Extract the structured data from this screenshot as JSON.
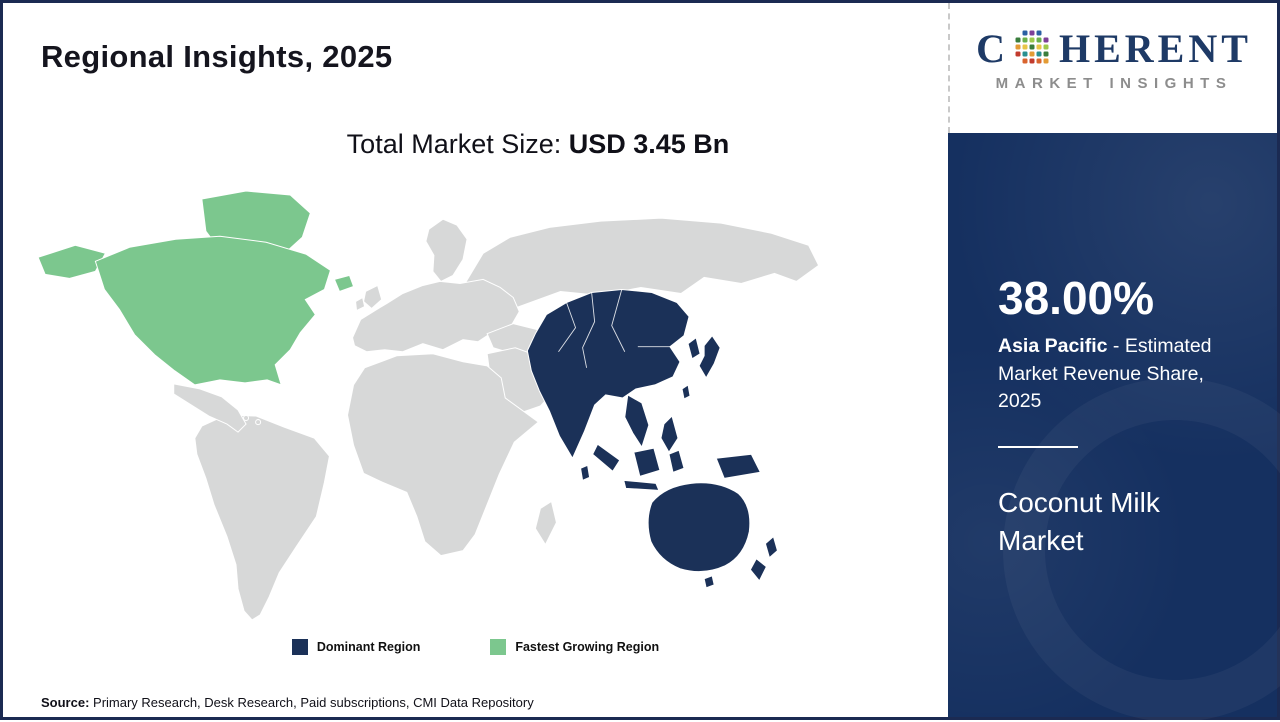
{
  "colors": {
    "frame": "#1b2a52",
    "dominant": "#1b3158",
    "fastest": "#7cc78e",
    "other": "#d7d8d8",
    "sidebar_bg": "#153060",
    "logo_navy": "#1e3a66",
    "logo_gray": "#8d8d8d",
    "text": "#15151e"
  },
  "header": {
    "title": "Regional Insights, 2025"
  },
  "market_size": {
    "label": "Total Market Size: ",
    "value": "USD 3.45 Bn"
  },
  "legend": {
    "items": [
      {
        "label": "Dominant Region",
        "key": "dominant"
      },
      {
        "label": "Fastest Growing Region",
        "key": "fastest"
      }
    ]
  },
  "sidebar": {
    "percentage": "38.00%",
    "region": "Asia Pacific",
    "description": " - Estimated Market Revenue Share, 2025",
    "market_name": "Coconut Milk Market"
  },
  "logo": {
    "word_start": "C",
    "word_end": "HERENT",
    "line2": "MARKET INSIGHTS",
    "dot_colors": [
      "#3a7d3c",
      "#e39b35",
      "#c23b2e",
      "#2b5fa3",
      "#6ab04c",
      "#e8c547",
      "#2a8f8f",
      "#d9642e",
      "#7d3f98",
      "#9dc94b"
    ]
  },
  "source": {
    "label": "Source:",
    "text": " Primary Research, Desk Research, Paid subscriptions, CMI Data Repository"
  },
  "chart_data": {
    "type": "heatmap",
    "subtype": "choropleth_world_map",
    "title": "Regional Insights, 2025",
    "total_market_size": {
      "label": "Total Market Size:",
      "value_usd_bn": 3.45,
      "display": "USD 3.45 Bn"
    },
    "regions": [
      {
        "name": "Asia Pacific",
        "role": "Dominant Region",
        "color": "#1b3158",
        "estimated_market_revenue_share_2025_pct": 38.0,
        "areas_highlighted": "Central/South/East/Southeast Asia, Japan, Korea, Indonesia, Philippines, Australia, New Zealand"
      },
      {
        "name": "North America",
        "role": "Fastest Growing Region",
        "color": "#7cc78e",
        "areas_highlighted": "Canada, United States, Alaska, Greenland, Iceland"
      },
      {
        "name": "Rest of World",
        "role": "Other",
        "color": "#d7d8d8"
      }
    ],
    "legend_position": "bottom-center",
    "legend": [
      {
        "label": "Dominant Region",
        "color": "#1b3158"
      },
      {
        "label": "Fastest Growing Region",
        "color": "#7cc78e"
      }
    ],
    "market": "Coconut Milk Market"
  }
}
